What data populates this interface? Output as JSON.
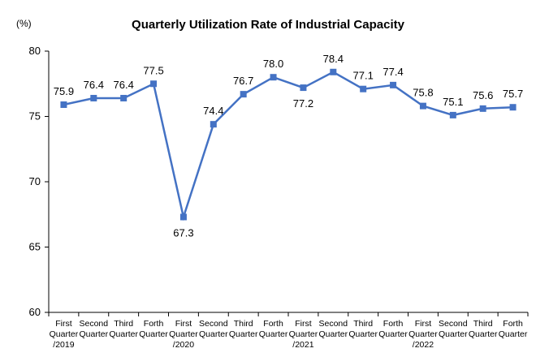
{
  "chart_data": {
    "type": "line",
    "title": "Quarterly Utilization Rate of Industrial Capacity",
    "unit_label": "(%)",
    "ylim": [
      60,
      80
    ],
    "yticks": [
      "60",
      "65",
      "70",
      "75",
      "80"
    ],
    "grid": false,
    "line_color": "#4472C4",
    "categories": [
      [
        "First",
        "Quarter",
        "/2019"
      ],
      [
        "Second",
        "Quarter"
      ],
      [
        "Third",
        "Quarter"
      ],
      [
        "Forth",
        "Quarter"
      ],
      [
        "First",
        "Quarter",
        "/2020"
      ],
      [
        "Second",
        "Quarter"
      ],
      [
        "Third",
        "Quarter"
      ],
      [
        "Forth",
        "Quarter"
      ],
      [
        "First",
        "Quarter",
        "/2021"
      ],
      [
        "Second",
        "Quarter"
      ],
      [
        "Third",
        "Quarter"
      ],
      [
        "Forth",
        "Quarter"
      ],
      [
        "First",
        "Quarter",
        "/2022"
      ],
      [
        "Second",
        "Quarter"
      ],
      [
        "Third",
        "Quarter"
      ],
      [
        "Forth",
        "Quarter"
      ]
    ],
    "values": [
      75.9,
      76.4,
      76.4,
      77.5,
      67.3,
      74.4,
      76.7,
      78.0,
      77.2,
      78.4,
      77.1,
      77.4,
      75.8,
      75.1,
      75.6,
      75.7
    ],
    "data_labels": [
      "75.9",
      "76.4",
      "76.4",
      "77.5",
      "67.3",
      "74.4",
      "76.7",
      "78.0",
      "77.2",
      "78.4",
      "77.1",
      "77.4",
      "75.8",
      "75.1",
      "75.6",
      "75.7"
    ]
  }
}
